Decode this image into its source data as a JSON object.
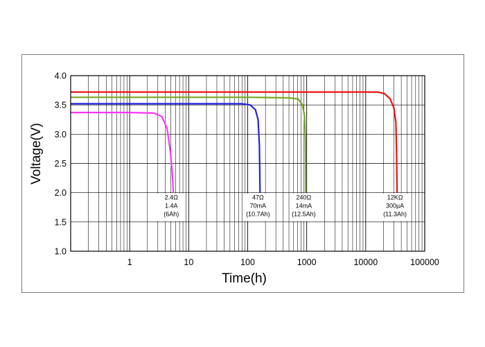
{
  "chart_data": {
    "type": "line",
    "title": "",
    "xlabel": "Time(h)",
    "ylabel": "Voltage(V)",
    "xscale": "log",
    "xlim": [
      0.1,
      100000
    ],
    "ylim": [
      1.0,
      4.0
    ],
    "grid": true,
    "x_ticks": [
      "1",
      "10",
      "100",
      "1000",
      "10000",
      "100000"
    ],
    "y_ticks": [
      "1.0",
      "1.5",
      "2.0",
      "2.5",
      "3.0",
      "3.5",
      "4.0"
    ],
    "series": [
      {
        "color": "#ff33ff",
        "points": [
          [
            0.1,
            3.37
          ],
          [
            1,
            3.37
          ],
          [
            2.6,
            3.36
          ],
          [
            3.5,
            3.3
          ],
          [
            4.3,
            3.1
          ],
          [
            4.9,
            2.7
          ],
          [
            5.3,
            2.3
          ],
          [
            5.5,
            2.0
          ]
        ],
        "annotation": [
          "2.4Ω",
          "1.4A",
          "(6Ah)"
        ]
      },
      {
        "color": "#2222dd",
        "points": [
          [
            0.1,
            3.52
          ],
          [
            10,
            3.52
          ],
          [
            80,
            3.52
          ],
          [
            110,
            3.5
          ],
          [
            135,
            3.42
          ],
          [
            150,
            3.25
          ],
          [
            158,
            2.8
          ],
          [
            162,
            2.0
          ]
        ],
        "annotation": [
          "47Ω",
          "70mA",
          "(10.7Ah)"
        ]
      },
      {
        "color": "#77aa22",
        "points": [
          [
            0.1,
            3.63
          ],
          [
            100,
            3.63
          ],
          [
            500,
            3.62
          ],
          [
            720,
            3.6
          ],
          [
            850,
            3.5
          ],
          [
            920,
            3.3
          ],
          [
            950,
            2.9
          ],
          [
            965,
            2.0
          ]
        ],
        "annotation": [
          "240Ω",
          "14mA",
          "(12.5Ah)"
        ]
      },
      {
        "color": "#ee1111",
        "points": [
          [
            0.1,
            3.72
          ],
          [
            1000,
            3.72
          ],
          [
            16000,
            3.72
          ],
          [
            21000,
            3.69
          ],
          [
            26000,
            3.6
          ],
          [
            30000,
            3.45
          ],
          [
            32500,
            3.2
          ],
          [
            33500,
            2.6
          ],
          [
            34000,
            2.0
          ]
        ],
        "annotation": [
          "12KΩ",
          "300µA",
          "(11.3Ah)"
        ]
      }
    ]
  }
}
